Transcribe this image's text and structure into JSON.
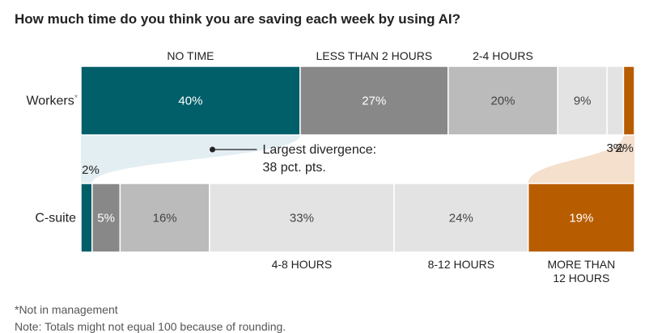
{
  "title": "How much time do you think you are saving each week by using AI?",
  "notes": {
    "footnote": "*Not in management",
    "rounding": "Note: Totals might not equal 100 because of rounding."
  },
  "chart_data": {
    "type": "bar",
    "orientation": "horizontal-stacked-100",
    "title": "How much time do you think you are saving each week by using AI?",
    "categories": [
      "NO TIME",
      "LESS THAN 2 HOURS",
      "2-4 HOURS",
      "4-8 HOURS",
      "8-12 HOURS",
      "MORE THAN 12 HOURS"
    ],
    "category_label_lines": [
      [
        "NO TIME"
      ],
      [
        "LESS THAN 2 HOURS"
      ],
      [
        "2-4 HOURS"
      ],
      [
        "4-8 HOURS"
      ],
      [
        "8-12 HOURS"
      ],
      [
        "MORE THAN",
        "12 HOURS"
      ]
    ],
    "colors": [
      "#005f69",
      "#888888",
      "#bbbbbb",
      "#e3e3e3",
      "#e3e3e3",
      "#b85c00"
    ],
    "series": [
      {
        "name": "Workers",
        "footnote_mark": "*",
        "values": [
          40,
          27,
          20,
          9,
          3,
          2
        ],
        "labels": [
          "40%",
          "27%",
          "20%",
          "9%",
          "3%",
          "2%"
        ]
      },
      {
        "name": "C-suite",
        "footnote_mark": "",
        "values": [
          2,
          5,
          16,
          33,
          24,
          19
        ],
        "labels": [
          "2%",
          "5%",
          "16%",
          "33%",
          "24%",
          "19%"
        ]
      }
    ],
    "annotation": {
      "lines": [
        "Largest divergence:",
        "38 pct. pts."
      ]
    }
  }
}
